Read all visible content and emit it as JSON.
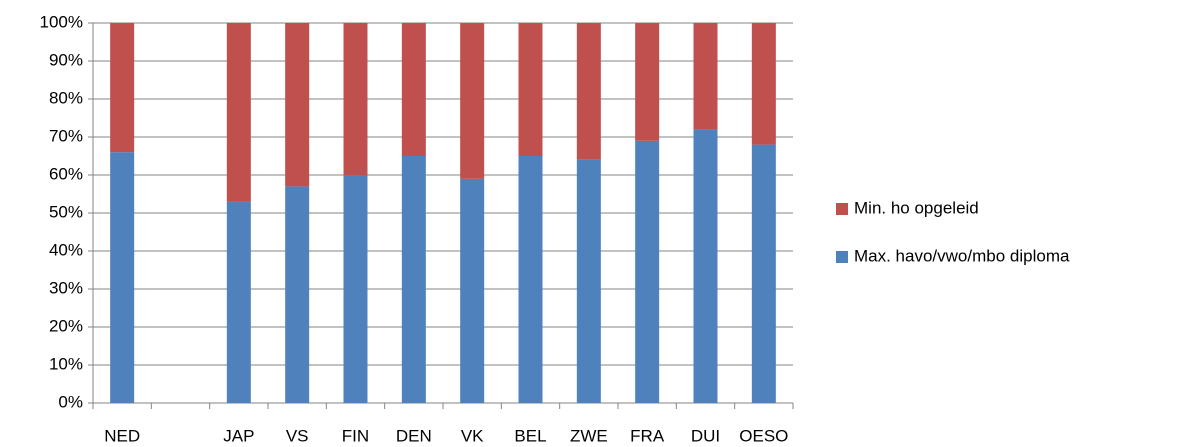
{
  "chart_data": {
    "type": "bar",
    "stacked": true,
    "categories": [
      "NED",
      null,
      "JAP",
      "VS",
      "FIN",
      "DEN",
      "VK",
      "BEL",
      "ZWE",
      "FRA",
      "DUI",
      "OESO"
    ],
    "series": [
      {
        "name": "Max. havo/vwo/mbo diploma",
        "color": "#4f81bd",
        "values": [
          66,
          null,
          53,
          57,
          60,
          65,
          59,
          65,
          64,
          69,
          72,
          68
        ]
      },
      {
        "name": "Min. ho opgeleid",
        "color": "#c0504d",
        "values": [
          34,
          null,
          47,
          43,
          40,
          35,
          41,
          35,
          36,
          31,
          28,
          32
        ]
      }
    ],
    "ylim": [
      0,
      100
    ],
    "yticks": [
      {
        "value": 0,
        "label": "0%"
      },
      {
        "value": 10,
        "label": "10%"
      },
      {
        "value": 20,
        "label": "20%"
      },
      {
        "value": 30,
        "label": "30%"
      },
      {
        "value": 40,
        "label": "40%"
      },
      {
        "value": 50,
        "label": "50%"
      },
      {
        "value": 60,
        "label": "60%"
      },
      {
        "value": 70,
        "label": "70%"
      },
      {
        "value": 80,
        "label": "80%"
      },
      {
        "value": 90,
        "label": "90%"
      },
      {
        "value": 100,
        "label": "100%"
      }
    ],
    "grid": true,
    "legend": "right"
  }
}
